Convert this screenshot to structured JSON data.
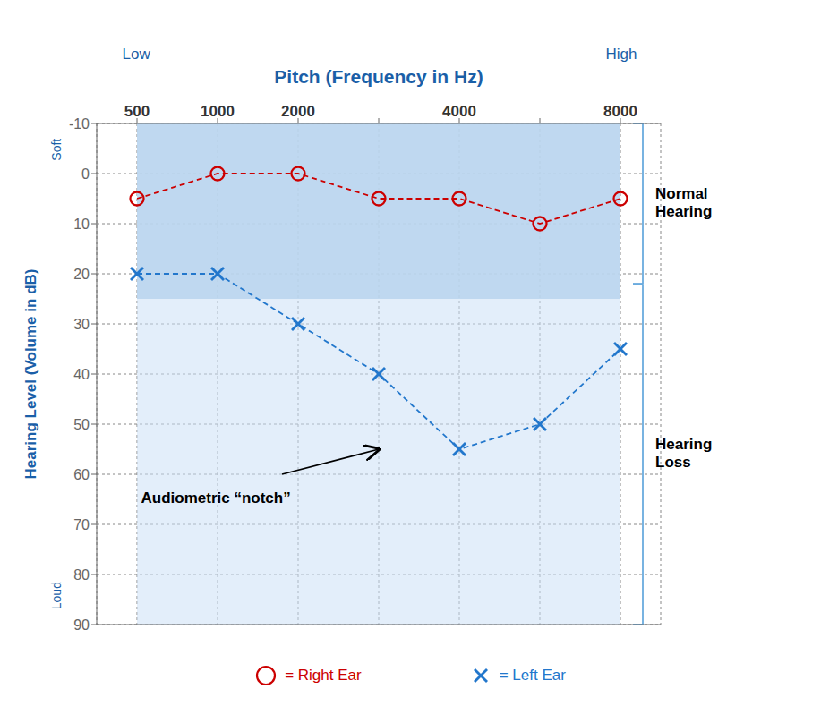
{
  "chart_data": {
    "type": "line",
    "xlabel": "Pitch (Frequency in Hz)",
    "x_end_labels": [
      "Low",
      "High"
    ],
    "ylabel": "Hearing Level (Volume in dB)",
    "y_end_labels": [
      "Soft",
      "Loud"
    ],
    "label_color": "#1a5fa8",
    "categories": [
      "500",
      "1000",
      "2000",
      null,
      "4000",
      null,
      "8000"
    ],
    "series": [
      {
        "name": "= Right Ear",
        "color": "#cc0000",
        "marker": "circle",
        "line_style": "dashed",
        "values": [
          5,
          0,
          0,
          5,
          5,
          10,
          5
        ]
      },
      {
        "name": "= Left Ear",
        "color": "#2277cc",
        "marker": "x",
        "line_style": "dashed",
        "values": [
          20,
          20,
          30,
          40,
          55,
          50,
          35
        ]
      }
    ],
    "ylim": [
      90,
      -10
    ],
    "yticks": [
      -10,
      0,
      10,
      20,
      30,
      40,
      50,
      60,
      70,
      80,
      90
    ],
    "grid": true,
    "legend": "bottom",
    "shaded_bands": [
      {
        "from": -10,
        "to": 90,
        "color": "#cce0f5"
      },
      {
        "from": -10,
        "to": 25,
        "color": "#b8d4ed"
      }
    ],
    "brackets": [
      {
        "label": "Normal\nHearing",
        "from": -10,
        "to": 22,
        "color": "#6aabde"
      },
      {
        "label": "Hearing\nLoss",
        "from": 22,
        "to": 90,
        "color": "#6aabde"
      }
    ],
    "annotations": [
      {
        "text": "Audiometric “notch”"
      }
    ]
  }
}
